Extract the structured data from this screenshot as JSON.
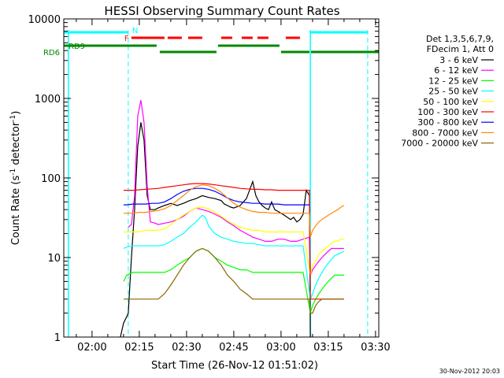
{
  "chart_data": {
    "type": "line",
    "title": "HESSI Observing Summary Count Rates",
    "xlabel": "Start Time (26-Nov-12 01:51:02)",
    "ylabel_main": "Count Rate (s",
    "ylabel_sup1": "-1",
    "ylabel_mid": " detector",
    "ylabel_sup2": "-1",
    "ylabel_end": ")",
    "footer": "30-Nov-2012 20:03",
    "x_ticks": [
      "02:00",
      "02:15",
      "02:30",
      "02:45",
      "03:00",
      "03:15",
      "03:30"
    ],
    "x_tick_minutes": [
      120,
      135,
      150,
      165,
      180,
      195,
      210
    ],
    "xlim_minutes": [
      111.03,
      211.03
    ],
    "ylim": [
      1,
      10000
    ],
    "y_scale": "log",
    "y_ticks": [
      "1",
      "10",
      "100",
      "1000",
      "10000"
    ],
    "y_tick_values": [
      1,
      10,
      100,
      1000,
      10000
    ],
    "legend_header": [
      "Det 1,3,5,6,7,9,",
      "FDecim 1, Att 0"
    ],
    "flags": {
      "labels": {
        "N": "N",
        "F": "F",
        "RD9": "RD9",
        "RD6": "RD6"
      },
      "night": [
        [
          111.03,
          131.5
        ],
        [
          189.3,
          207.5
        ]
      ],
      "flare": [
        [
          132.5,
          143
        ],
        [
          144,
          148.5
        ],
        [
          150.5,
          155
        ],
        [
          161,
          164.5
        ],
        [
          167.5,
          171
        ],
        [
          172.5,
          176
        ],
        [
          181.5,
          186
        ]
      ],
      "decim": [
        [
          111.03,
          140.5
        ],
        [
          141.5,
          159.5
        ],
        [
          160,
          179.5
        ],
        [
          180,
          189
        ],
        [
          189.5,
          211.03
        ]
      ],
      "saa_lines_dashed": [
        131.5,
        207.5
      ],
      "night_lines_solid": [
        112.5,
        189.3
      ]
    },
    "series": [
      {
        "name": "3 - 6 keV",
        "color": "#000000",
        "x": [
          129,
          130,
          131,
          131.5,
          132.5,
          133.5,
          134.5,
          135.5,
          136.5,
          137.5,
          138.5,
          140,
          141,
          143,
          145,
          147,
          149,
          151,
          153,
          155,
          157,
          159,
          161,
          162,
          163,
          164,
          165,
          167,
          169,
          170,
          171,
          172,
          173,
          174,
          175,
          176,
          177,
          178,
          179,
          180,
          181,
          182,
          183,
          184,
          185,
          186,
          187,
          188,
          189,
          189.3
        ],
        "y": [
          1,
          1.5,
          1.8,
          2,
          10,
          40,
          250,
          500,
          300,
          60,
          40,
          40,
          42,
          45,
          48,
          45,
          48,
          52,
          55,
          60,
          57,
          55,
          52,
          47,
          45,
          43,
          42,
          45,
          55,
          70,
          90,
          60,
          50,
          45,
          42,
          40,
          50,
          40,
          38,
          36,
          34,
          32,
          30,
          32,
          28,
          30,
          35,
          70,
          60,
          1
        ]
      },
      {
        "name": "6 - 12 keV",
        "color": "#ff00ff",
        "x": [
          131.5,
          132.5,
          133.5,
          134.5,
          135.5,
          136.5,
          137.5,
          138.5,
          140,
          141,
          143,
          145,
          147,
          149,
          151,
          153,
          155,
          157,
          159,
          161,
          163,
          165,
          167,
          169,
          171,
          173,
          175,
          177,
          179,
          181,
          183,
          185,
          187,
          189,
          189.3,
          190,
          191,
          192,
          193,
          194,
          195,
          196,
          197,
          198,
          199,
          200
        ],
        "y": [
          24,
          26,
          60,
          600,
          950,
          500,
          80,
          28,
          27,
          26,
          27,
          28,
          30,
          33,
          38,
          42,
          40,
          38,
          35,
          32,
          28,
          25,
          22,
          20,
          18,
          17,
          16,
          16,
          17,
          17,
          16,
          16,
          17,
          18,
          6,
          7,
          8,
          9,
          10,
          11,
          12,
          13,
          13,
          13,
          13,
          13
        ]
      },
      {
        "name": "12 - 25 keV",
        "color": "#00ff00",
        "x": [
          130,
          131,
          133,
          135,
          137,
          139,
          141,
          143,
          145,
          147,
          149,
          151,
          153,
          155,
          157,
          159,
          161,
          163,
          165,
          167,
          169,
          171,
          173,
          175,
          177,
          179,
          181,
          183,
          185,
          187,
          189.3,
          190,
          191,
          192,
          193,
          194,
          195,
          196,
          197,
          198,
          199,
          200
        ],
        "y": [
          5,
          6,
          6.5,
          6.5,
          6.5,
          6.5,
          6.5,
          6.5,
          7,
          8,
          9,
          10,
          12,
          13,
          12,
          10,
          9,
          8,
          7.5,
          7,
          7,
          6.5,
          6.5,
          6.5,
          6.5,
          6.5,
          6.5,
          6.5,
          6.5,
          6.5,
          2,
          2.5,
          3,
          3.5,
          4,
          4.5,
          5,
          5.5,
          6,
          6,
          6,
          6
        ]
      },
      {
        "name": "25 - 50 keV",
        "color": "#00ffff",
        "x": [
          130,
          131,
          133,
          135,
          137,
          139,
          141,
          143,
          145,
          147,
          149,
          151,
          153,
          155,
          156,
          157,
          158,
          159,
          161,
          163,
          165,
          167,
          169,
          171,
          173,
          175,
          177,
          179,
          181,
          183,
          185,
          187,
          189.3,
          190,
          191,
          192,
          193,
          194,
          195,
          196,
          197,
          198,
          199,
          200
        ],
        "y": [
          13,
          13.5,
          14,
          14,
          14,
          14,
          14,
          14.5,
          16,
          18,
          20,
          24,
          28,
          34,
          32,
          25,
          22,
          20,
          18,
          17,
          16,
          15.5,
          15,
          15,
          14.5,
          14,
          14,
          14,
          14,
          14,
          14,
          14,
          3,
          3.5,
          4.5,
          5.5,
          6.5,
          7.5,
          8.5,
          9.5,
          10.5,
          11,
          11.5,
          12
        ]
      },
      {
        "name": "50 - 100 keV",
        "color": "#ffff00",
        "x": [
          130,
          131,
          133,
          135,
          137,
          139,
          141,
          143,
          145,
          147,
          149,
          151,
          153,
          155,
          157,
          159,
          161,
          163,
          165,
          167,
          169,
          171,
          173,
          175,
          177,
          179,
          181,
          183,
          185,
          187,
          189.3,
          190,
          191,
          192,
          193,
          194,
          195,
          196,
          197,
          198,
          199,
          200
        ],
        "y": [
          21,
          21,
          21,
          21,
          22,
          22,
          22,
          23,
          26,
          30,
          34,
          38,
          42,
          43,
          41,
          37,
          33,
          29,
          26,
          24,
          23,
          22,
          22,
          21,
          21,
          21,
          21,
          21,
          21,
          21,
          6,
          8,
          9,
          11,
          12,
          13,
          14,
          15,
          16,
          16,
          17,
          17
        ]
      },
      {
        "name": "100 - 300 keV",
        "color": "#ff0000",
        "x": [
          130,
          131,
          133,
          135,
          137,
          139,
          141,
          143,
          145,
          147,
          149,
          151,
          153,
          155,
          157,
          159,
          161,
          163,
          165,
          167,
          169,
          171,
          173,
          175,
          177,
          179,
          181,
          183,
          185,
          187,
          189,
          189.3,
          190,
          191,
          192,
          193,
          194,
          195,
          196,
          197,
          198,
          199,
          200
        ],
        "y": [
          70,
          70,
          70,
          71,
          72,
          73,
          74,
          76,
          78,
          80,
          82,
          84,
          85,
          85,
          84,
          82,
          80,
          78,
          76,
          74,
          73,
          72,
          72,
          71,
          71,
          70,
          70,
          70,
          70,
          70,
          70,
          3,
          3,
          3,
          3,
          3,
          3,
          3,
          3,
          3,
          3,
          3,
          3
        ]
      },
      {
        "name": "300 - 800 keV",
        "color": "#0000ff",
        "x": [
          130,
          131,
          133,
          135,
          137,
          139,
          141,
          143,
          145,
          147,
          149,
          151,
          153,
          155,
          157,
          159,
          161,
          163,
          165,
          167,
          169,
          171,
          173,
          175,
          177,
          179,
          181,
          183,
          185,
          187,
          189
        ],
        "y": [
          46,
          46,
          47,
          47,
          47,
          48,
          48,
          50,
          55,
          62,
          68,
          72,
          74,
          74,
          72,
          68,
          62,
          56,
          52,
          50,
          49,
          48,
          48,
          47,
          47,
          47,
          46,
          46,
          46,
          46,
          46
        ]
      },
      {
        "name": "800 - 7000 keV",
        "color": "#ff8800",
        "x": [
          130,
          131,
          133,
          135,
          137,
          139,
          141,
          143,
          145,
          147,
          149,
          151,
          153,
          155,
          157,
          159,
          161,
          163,
          165,
          167,
          169,
          171,
          173,
          175,
          177,
          179,
          181,
          183,
          185,
          187,
          189,
          189.3,
          190,
          191,
          192,
          193,
          194,
          195,
          196,
          197,
          198,
          199,
          200
        ],
        "y": [
          36,
          36,
          36,
          37,
          37,
          38,
          39,
          41,
          45,
          52,
          60,
          70,
          78,
          82,
          80,
          74,
          66,
          56,
          48,
          43,
          40,
          38,
          37,
          37,
          36,
          36,
          36,
          36,
          36,
          36,
          36,
          18,
          22,
          25,
          28,
          30,
          32,
          34,
          36,
          38,
          40,
          43,
          45
        ]
      },
      {
        "name": "7000 - 20000 keV",
        "color": "#886600",
        "x": [
          130,
          131,
          133,
          135,
          137,
          139,
          141,
          143,
          145,
          147,
          149,
          151,
          153,
          155,
          157,
          159,
          161,
          163,
          165,
          167,
          169,
          171,
          173,
          175,
          177,
          179,
          181,
          183,
          185,
          187,
          189,
          189.3,
          190,
          191,
          192,
          193,
          194,
          195,
          196,
          197,
          198,
          199,
          200
        ],
        "y": [
          3,
          3,
          3,
          3,
          3,
          3,
          3,
          3.5,
          4.5,
          6,
          8,
          10,
          12,
          13,
          12,
          10,
          8,
          6,
          5,
          4,
          3.5,
          3,
          3,
          3,
          3,
          3,
          3,
          3,
          3,
          3,
          3,
          2,
          2,
          2.5,
          2.8,
          3,
          3,
          3,
          3,
          3,
          3,
          3,
          3
        ]
      }
    ]
  }
}
